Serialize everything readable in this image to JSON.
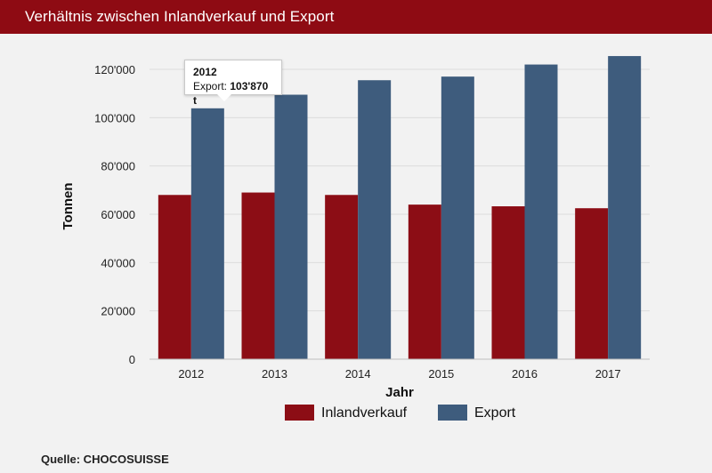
{
  "header": {
    "title": "Verhältnis zwischen Inlandverkauf und Export"
  },
  "tooltip": {
    "year": "2012",
    "label": "Export:",
    "value": "103'870 t"
  },
  "source": "Quelle: CHOCOSUISSE",
  "colors": {
    "header": "#8e0b13",
    "inland": "#8c0d15",
    "export": "#3e5c7d",
    "grid": "#dcdcdc"
  },
  "chart_data": {
    "type": "bar",
    "title": "Verhältnis zwischen Inlandverkauf und Export",
    "xlabel": "Jahr",
    "ylabel": "Tonnen",
    "categories": [
      "2012",
      "2013",
      "2014",
      "2015",
      "2016",
      "2017"
    ],
    "series": [
      {
        "name": "Inlandverkauf",
        "values": [
          68000,
          69000,
          68000,
          64000,
          63300,
          62500
        ]
      },
      {
        "name": "Export",
        "values": [
          103870,
          109500,
          115500,
          117000,
          122000,
          125500
        ]
      }
    ],
    "ylim": [
      0,
      120000
    ],
    "yticks": [
      0,
      20000,
      40000,
      60000,
      80000,
      100000,
      120000
    ],
    "ytick_labels": [
      "0",
      "20'000",
      "40'000",
      "60'000",
      "80'000",
      "100'000",
      "120'000"
    ],
    "grid": true,
    "legend": "bottom-center"
  }
}
